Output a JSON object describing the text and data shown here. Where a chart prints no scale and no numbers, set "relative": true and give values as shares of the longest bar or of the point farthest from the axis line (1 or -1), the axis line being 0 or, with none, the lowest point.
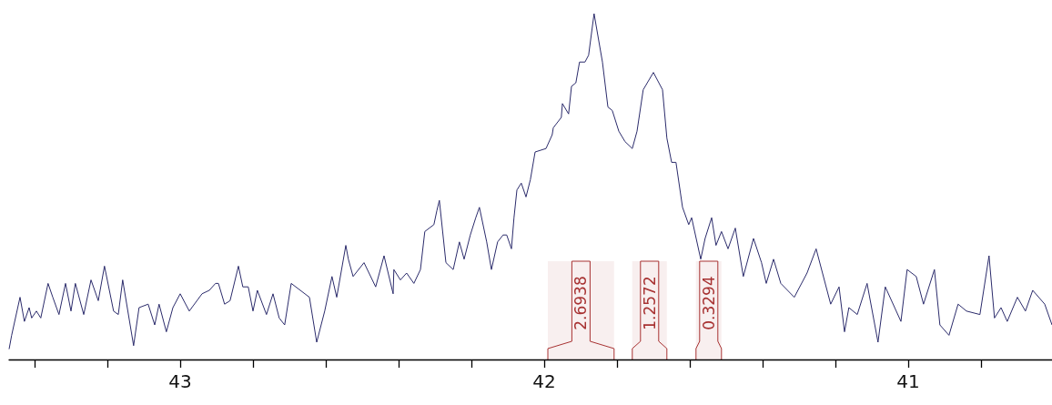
{
  "chart_data": {
    "type": "line",
    "relative": true,
    "color": "#2b2b6b",
    "marker": "none",
    "line_style": "solid",
    "grid": false,
    "tick_labels": "x",
    "xlim": [
      43.47,
      40.605
    ],
    "xticks": [
      {
        "value": 43.4,
        "label": null
      },
      {
        "value": 43.2,
        "label": null
      },
      43,
      {
        "value": 42.8,
        "label": null
      },
      {
        "value": 42.6,
        "label": null
      },
      {
        "value": 42.4,
        "label": null
      },
      {
        "value": 42.2,
        "label": null
      },
      42,
      {
        "value": 41.8,
        "label": null
      },
      {
        "value": 41.6,
        "label": null
      },
      {
        "value": 41.4,
        "label": null
      },
      {
        "value": 41.2,
        "label": null
      },
      41,
      {
        "value": 40.8,
        "label": null
      }
    ],
    "x": [
      43.47,
      43.463,
      43.44,
      43.428,
      43.415,
      43.408,
      43.395,
      43.383,
      43.363,
      43.35,
      43.333,
      43.315,
      43.3,
      43.288,
      43.265,
      43.245,
      43.225,
      43.208,
      43.183,
      43.17,
      43.158,
      43.128,
      43.113,
      43.088,
      43.07,
      43.058,
      43.038,
      43.02,
      43.0,
      42.975,
      42.94,
      42.92,
      42.903,
      42.895,
      42.878,
      42.863,
      42.84,
      42.828,
      42.813,
      42.8,
      42.788,
      42.763,
      42.745,
      42.728,
      42.713,
      42.695,
      42.645,
      42.625,
      42.603,
      42.583,
      42.57,
      42.545,
      42.538,
      42.525,
      42.495,
      42.463,
      42.44,
      42.415,
      42.413,
      42.395,
      42.378,
      42.358,
      42.34,
      42.328,
      42.303,
      42.295,
      42.288,
      42.27,
      42.25,
      42.233,
      42.22,
      42.203,
      42.188,
      42.178,
      42.158,
      42.145,
      42.128,
      42.113,
      42.103,
      42.09,
      42.083,
      42.075,
      42.063,
      42.05,
      42.038,
      42.025,
      41.995,
      41.978,
      41.975,
      41.953,
      41.95,
      41.933,
      41.925,
      41.913,
      41.903,
      41.888,
      41.878,
      41.863,
      41.84,
      41.825,
      41.813,
      41.795,
      41.778,
      41.758,
      41.745,
      41.728,
      41.7,
      41.675,
      41.663,
      41.65,
      41.638,
      41.62,
      41.603,
      41.595,
      41.57,
      41.558,
      41.54,
      41.528,
      41.513,
      41.495,
      41.475,
      41.453,
      41.425,
      41.403,
      41.39,
      41.37,
      41.35,
      41.313,
      41.278,
      41.253,
      41.213,
      41.19,
      41.175,
      41.163,
      41.14,
      41.113,
      41.083,
      41.063,
      41.02,
      41.003,
      40.978,
      40.958,
      40.928,
      40.913,
      40.888,
      40.863,
      40.84,
      40.803,
      40.778,
      40.763,
      40.745,
      40.728,
      40.7,
      40.678,
      40.658,
      40.625,
      40.605
    ],
    "values": [
      0.03,
      0.07,
      0.18,
      0.11,
      0.15,
      0.12,
      0.14,
      0.12,
      0.22,
      0.18,
      0.13,
      0.22,
      0.14,
      0.22,
      0.13,
      0.23,
      0.17,
      0.27,
      0.14,
      0.13,
      0.23,
      0.04,
      0.15,
      0.16,
      0.1,
      0.16,
      0.08,
      0.15,
      0.19,
      0.14,
      0.19,
      0.2,
      0.22,
      0.22,
      0.16,
      0.17,
      0.27,
      0.21,
      0.21,
      0.14,
      0.2,
      0.13,
      0.19,
      0.12,
      0.1,
      0.22,
      0.18,
      0.05,
      0.14,
      0.24,
      0.18,
      0.33,
      0.29,
      0.24,
      0.28,
      0.21,
      0.3,
      0.19,
      0.26,
      0.23,
      0.25,
      0.22,
      0.26,
      0.37,
      0.39,
      0.43,
      0.46,
      0.28,
      0.26,
      0.34,
      0.29,
      0.36,
      0.41,
      0.44,
      0.34,
      0.26,
      0.34,
      0.36,
      0.36,
      0.32,
      0.41,
      0.49,
      0.51,
      0.47,
      0.52,
      0.6,
      0.61,
      0.65,
      0.67,
      0.7,
      0.74,
      0.71,
      0.79,
      0.8,
      0.86,
      0.86,
      0.88,
      1,
      0.86,
      0.73,
      0.72,
      0.66,
      0.63,
      0.61,
      0.66,
      0.78,
      0.83,
      0.78,
      0.64,
      0.57,
      0.57,
      0.44,
      0.39,
      0.41,
      0.29,
      0.35,
      0.41,
      0.33,
      0.37,
      0.32,
      0.38,
      0.24,
      0.35,
      0.28,
      0.22,
      0.29,
      0.22,
      0.18,
      0.25,
      0.32,
      0.16,
      0.21,
      0.08,
      0.15,
      0.13,
      0.22,
      0.05,
      0.21,
      0.11,
      0.26,
      0.24,
      0.16,
      0.26,
      0.1,
      0.07,
      0.16,
      0.14,
      0.13,
      0.3,
      0.12,
      0.15,
      0.11,
      0.18,
      0.14,
      0.2,
      0.16,
      0.1
    ],
    "bands": [
      {
        "axis": "x",
        "from": 41.99,
        "to": 41.808,
        "label": "2.6938",
        "color": "#a83232"
      },
      {
        "axis": "x",
        "from": 41.758,
        "to": 41.663,
        "label": "1.2572",
        "color": "#a83232"
      },
      {
        "axis": "x",
        "from": 41.583,
        "to": 41.513,
        "label": "0.3294",
        "color": "#a83232"
      }
    ]
  }
}
